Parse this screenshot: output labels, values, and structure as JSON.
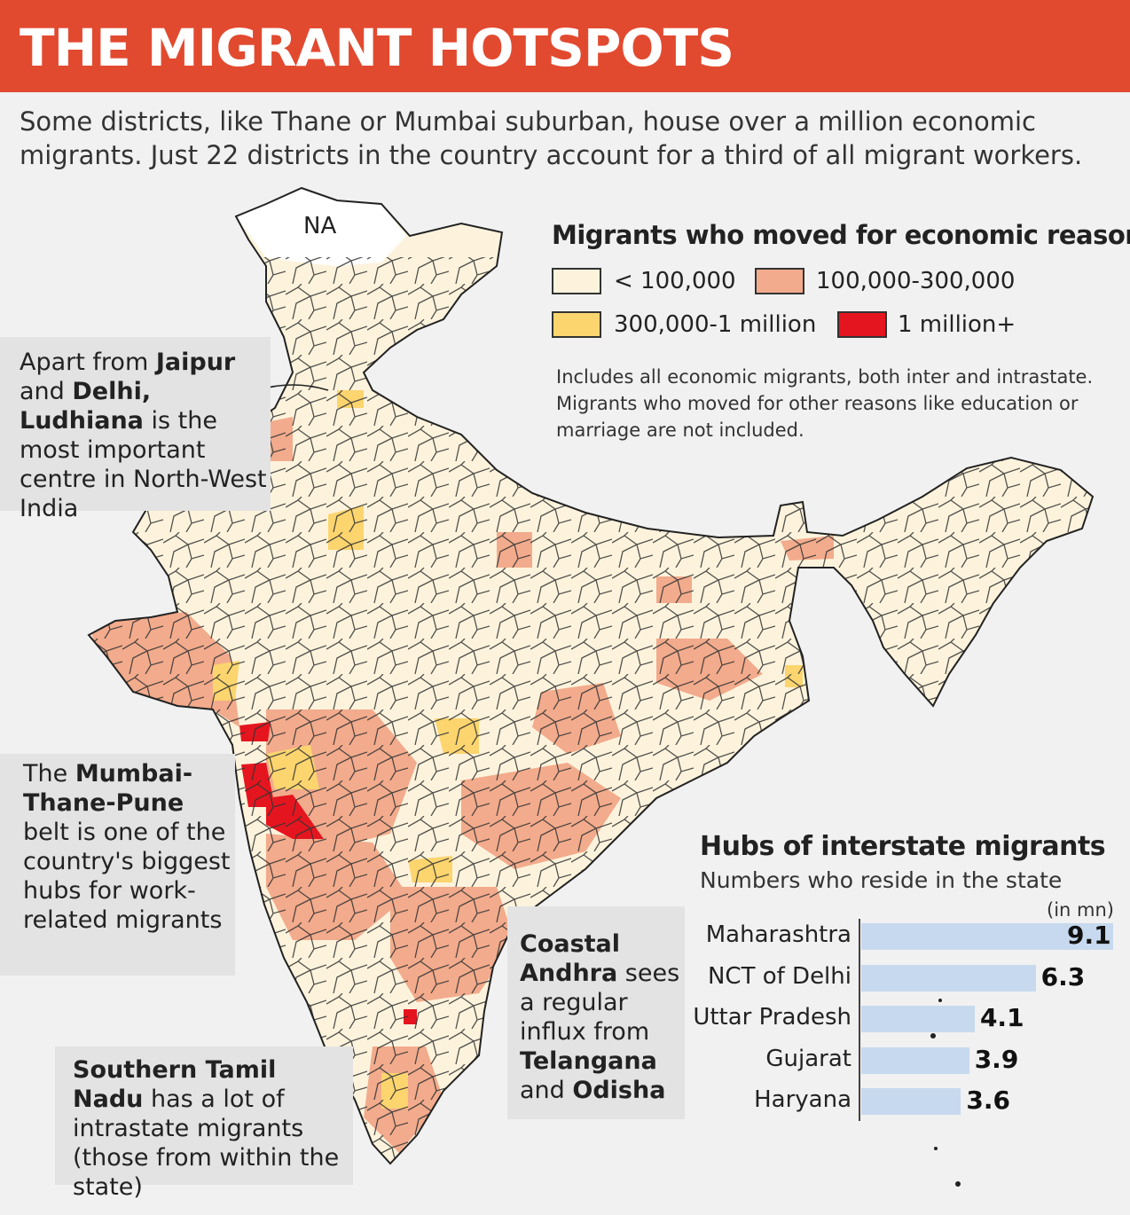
{
  "title": "THE MIGRANT HOTSPOTS",
  "subtitle": "Some districts, like Thane or Mumbai suburban, house over a million economic migrants. Just 22 districts in the country account for a third of all migrant workers.",
  "map": {
    "na_label": "NA",
    "legend": {
      "title": "Migrants who moved for economic reasons",
      "items": [
        {
          "label": "< 100,000",
          "color": "#fdf3dc"
        },
        {
          "label": "100,000-300,000",
          "color": "#f2ab8c"
        },
        {
          "label": "300,000-1 million",
          "color": "#fcd56f"
        },
        {
          "label": "1 million+",
          "color": "#e5151f"
        }
      ]
    },
    "note": "Includes all economic migrants, both inter and intrastate. Migrants who moved for other reasons like education or marriage are not included."
  },
  "callouts": {
    "ludhiana": {
      "p1": "Apart from ",
      "b1": "Jaipur",
      "p2": " and ",
      "b2": "Delhi, Ludhiana",
      "p3": " is the most important centre in North-West India"
    },
    "mumbai": {
      "p1": "The ",
      "b1": "Mumbai-Thane-Pune",
      "p2": " belt is one of the country's biggest hubs for work-related migrants"
    },
    "andhra": {
      "b1": "Coastal Andhra",
      "p1": " sees a regular influx from ",
      "b2": "Telangana",
      "p2": " and ",
      "b3": "Odisha"
    },
    "tamil": {
      "b1": "Southern Tamil Nadu",
      "p1": " has a lot of intrastate migrants (those from within the state)"
    }
  },
  "chart_data": {
    "type": "bar",
    "title": "Hubs of interstate migrants",
    "subtitle": "Numbers who reside in the state",
    "unit": "(in mn)",
    "categories": [
      "Maharashtra",
      "NCT of Delhi",
      "Uttar Pradesh",
      "Gujarat",
      "Haryana"
    ],
    "values": [
      9.1,
      6.3,
      4.1,
      3.9,
      3.6
    ],
    "values_text": [
      "9.1",
      "6.3",
      "4.1",
      "3.9",
      "3.6"
    ],
    "xlim": [
      0,
      9.1
    ],
    "orientation": "horizontal",
    "bar_color": "#c7d9ee"
  }
}
